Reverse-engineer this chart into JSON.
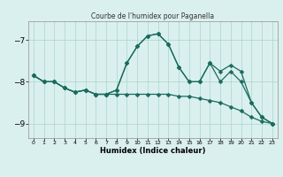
{
  "title": "Courbe de l'humidex pour Paganella",
  "xlabel": "Humidex (Indice chaleur)",
  "bg_color": "#daf0ee",
  "grid_color": "#aad4cc",
  "line_color": "#1a6b5e",
  "xlim": [
    -0.5,
    23.5
  ],
  "ylim": [
    -9.35,
    -6.55
  ],
  "yticks": [
    -9,
    -8,
    -7
  ],
  "xticks": [
    0,
    1,
    2,
    3,
    4,
    5,
    6,
    7,
    8,
    9,
    10,
    11,
    12,
    13,
    14,
    15,
    16,
    17,
    18,
    19,
    20,
    21,
    22,
    23
  ],
  "line1_x": [
    0,
    1,
    2,
    3,
    4,
    5,
    6,
    7,
    8,
    9,
    10,
    11,
    12,
    13,
    14,
    15,
    16,
    17,
    18,
    19,
    20,
    21,
    22,
    23
  ],
  "line1_y": [
    -7.85,
    -8.0,
    -8.0,
    -8.15,
    -8.25,
    -8.2,
    -8.3,
    -8.3,
    -8.3,
    -8.3,
    -8.3,
    -8.3,
    -8.3,
    -8.3,
    -8.35,
    -8.35,
    -8.4,
    -8.45,
    -8.5,
    -8.6,
    -8.7,
    -8.85,
    -8.95,
    -9.0
  ],
  "line2_x": [
    0,
    1,
    2,
    3,
    4,
    5,
    6,
    7,
    8,
    9,
    10,
    11,
    12,
    13,
    14,
    15,
    16,
    17,
    18,
    19,
    20,
    21,
    22,
    23
  ],
  "line2_y": [
    -7.85,
    -8.0,
    -8.0,
    -8.15,
    -8.25,
    -8.2,
    -8.3,
    -8.3,
    -8.2,
    -7.55,
    -7.15,
    -6.9,
    -6.85,
    -7.1,
    -7.65,
    -8.0,
    -8.0,
    -7.55,
    -8.0,
    -7.75,
    -8.0,
    -8.5,
    -8.85,
    -9.0
  ],
  "line3_x": [
    0,
    1,
    2,
    3,
    4,
    5,
    6,
    7,
    8,
    9,
    10,
    11,
    12,
    13,
    14,
    15,
    16,
    17,
    18,
    19,
    20,
    21,
    22,
    23
  ],
  "line3_y": [
    -7.85,
    -8.0,
    -8.0,
    -8.15,
    -8.25,
    -8.2,
    -8.3,
    -8.3,
    -8.2,
    -7.55,
    -7.15,
    -6.9,
    -6.85,
    -7.1,
    -7.65,
    -8.0,
    -8.0,
    -7.55,
    -7.75,
    -7.6,
    -7.75,
    -8.5,
    -8.85,
    -9.0
  ]
}
